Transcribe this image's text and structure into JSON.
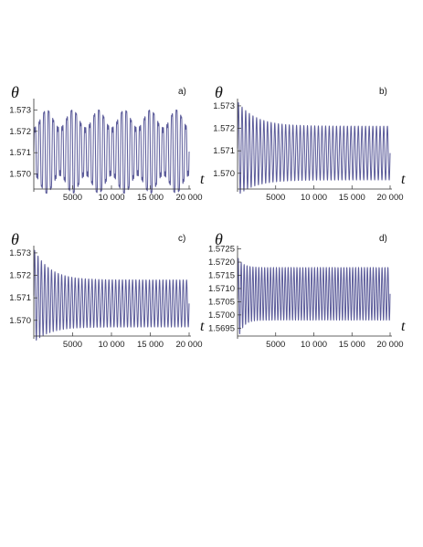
{
  "chart_data": [
    {
      "type": "line",
      "panel_label": "a)",
      "ylabel": "θ",
      "xlabel": "t",
      "xlim": [
        0,
        20000
      ],
      "ylim": [
        1.5693,
        1.5734
      ],
      "x_axis_at_y": 1.5693,
      "x_ticks": [
        5000,
        10000,
        15000,
        20000
      ],
      "x_tick_labels": [
        "5000",
        "10 000",
        "15 000",
        "20 000"
      ],
      "y_ticks": [
        1.57,
        1.571,
        1.572,
        1.573
      ],
      "y_tick_labels": [
        "1.570",
        "1.571",
        "1.572",
        "1.573"
      ],
      "series": [
        {
          "t_start": 0,
          "t_end": 20000,
          "cycles": 34,
          "max_initial": 1.5733,
          "min_initial": 1.5688,
          "max_final": 1.5733,
          "min_final": 1.5688,
          "center": 1.57095,
          "transient_time": 0,
          "beat_cycles": 6,
          "beat_depth": 0.45
        }
      ]
    },
    {
      "type": "line",
      "panel_label": "b)",
      "ylabel": "θ",
      "xlabel": "t",
      "xlim": [
        0,
        20000
      ],
      "ylim": [
        1.5693,
        1.5732
      ],
      "x_axis_at_y": 1.5693,
      "x_ticks": [
        5000,
        10000,
        15000,
        20000
      ],
      "x_tick_labels": [
        "5000",
        "10 000",
        "15 000",
        "20 000"
      ],
      "y_ticks": [
        1.57,
        1.571,
        1.572,
        1.573
      ],
      "y_tick_labels": [
        "1.570",
        "1.571",
        "1.572",
        "1.573"
      ],
      "series": [
        {
          "t_start": 0,
          "t_end": 20000,
          "cycles": 42,
          "max_initial": 1.5732,
          "min_initial": 1.569,
          "max_final": 1.5721,
          "min_final": 1.5697,
          "center": 1.5709,
          "transient_time": 7000,
          "beat_cycles": 0,
          "beat_depth": 0
        }
      ]
    },
    {
      "type": "line",
      "panel_label": "c)",
      "ylabel": "θ",
      "xlabel": "t",
      "xlim": [
        0,
        20000
      ],
      "ylim": [
        1.5693,
        1.5732
      ],
      "x_axis_at_y": 1.5693,
      "x_ticks": [
        5000,
        10000,
        15000,
        20000
      ],
      "x_tick_labels": [
        "5000",
        "10 000",
        "15 000",
        "20 000"
      ],
      "y_ticks": [
        1.57,
        1.571,
        1.572,
        1.573
      ],
      "y_tick_labels": [
        "1.570",
        "1.571",
        "1.572",
        "1.573"
      ],
      "series": [
        {
          "t_start": 0,
          "t_end": 20000,
          "cycles": 46,
          "max_initial": 1.5732,
          "min_initial": 1.569,
          "max_final": 1.5718,
          "min_final": 1.5697,
          "center": 1.57075,
          "transient_time": 6000,
          "beat_cycles": 0,
          "beat_depth": 0
        }
      ]
    },
    {
      "type": "line",
      "panel_label": "d)",
      "ylabel": "θ",
      "xlabel": "t",
      "xlim": [
        0,
        20000
      ],
      "ylim": [
        1.5692,
        1.57252
      ],
      "x_axis_at_y": 1.5692,
      "x_ticks": [
        5000,
        10000,
        15000,
        20000
      ],
      "x_tick_labels": [
        "5000",
        "10 000",
        "15 000",
        "20 000"
      ],
      "y_ticks": [
        1.5695,
        1.57,
        1.5705,
        1.571,
        1.5715,
        1.572,
        1.5725
      ],
      "y_tick_labels": [
        "1.5695",
        "1.5700",
        "1.5705",
        "1.5710",
        "1.5715",
        "1.5720",
        "1.5725"
      ],
      "series": [
        {
          "t_start": 0,
          "t_end": 20000,
          "cycles": 52,
          "max_initial": 1.5722,
          "min_initial": 1.569,
          "max_final": 1.5718,
          "min_final": 1.5698,
          "center": 1.5708,
          "transient_time": 2000,
          "beat_cycles": 0,
          "beat_depth": 0
        }
      ]
    }
  ],
  "colors": {
    "line": "#5c5c9a",
    "axis": "#333333"
  }
}
